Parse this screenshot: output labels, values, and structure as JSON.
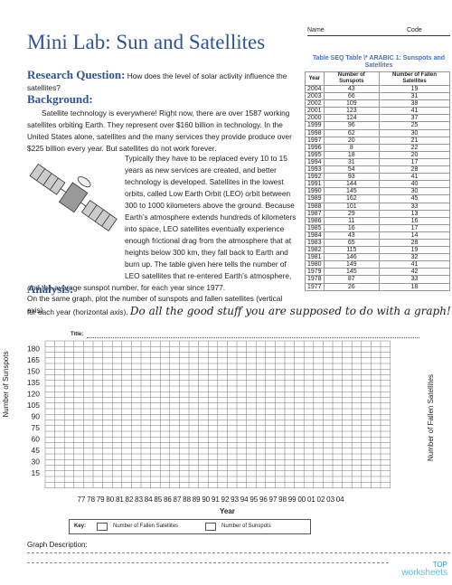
{
  "header": {
    "name_label": "Name",
    "code_label": "Code",
    "title": "Mini Lab: Sun and Satellites"
  },
  "research": {
    "heading": "Research Question:",
    "question": "How does the level of solar activity influence the satellites?"
  },
  "background": {
    "heading": "Background:",
    "paragraphs": [
      "Satellite technology is everywhere! Right now, there are over 1587 working satellites orbiting Earth. They represent over $160 billion in technology. In the United States alone, satellites and the many services they provide produce over $225 billion every year. But satellites do not work forever.",
      "Typically they have to be replaced every 10 to 15 years as new services are created, and better technology is developed. Satellites in the lowest orbits, called Low Earth Orbit (LEO) orbit between 300 to 1000 kilometers above the ground. Because Earth’s atmosphere extends hundreds of kilometers into space, LEO satellites eventually experience enough frictional drag from the atmosphere that at heights below 300 km, they fall back to Earth and burn up. The table given here tells the number of LEO satellites that re-entered Earth’s atmosphere, and the average sunspot number, for each year since 1977."
    ]
  },
  "table": {
    "caption": "Table  SEQ Table \\* ARABIC 1: Sunspots and Satellites",
    "headers": [
      "Year",
      "Number of Sunspots",
      "Number of Fallen Satellites"
    ],
    "rows": [
      [
        "2004",
        "43",
        "19"
      ],
      [
        "2003",
        "66",
        "31"
      ],
      [
        "2002",
        "109",
        "38"
      ],
      [
        "2001",
        "123",
        "41"
      ],
      [
        "2000",
        "124",
        "37"
      ],
      [
        "1999",
        "96",
        "25"
      ],
      [
        "1998",
        "62",
        "30"
      ],
      [
        "1997",
        "20",
        "21"
      ],
      [
        "1996",
        "8",
        "22"
      ],
      [
        "1995",
        "18",
        "20"
      ],
      [
        "1994",
        "31",
        "17"
      ],
      [
        "1993",
        "54",
        "28"
      ],
      [
        "1992",
        "93",
        "41"
      ],
      [
        "1991",
        "144",
        "40"
      ],
      [
        "1990",
        "145",
        "30"
      ],
      [
        "1989",
        "162",
        "45"
      ],
      [
        "1988",
        "101",
        "33"
      ],
      [
        "1987",
        "29",
        "13"
      ],
      [
        "1986",
        "11",
        "16"
      ],
      [
        "1985",
        "16",
        "17"
      ],
      [
        "1984",
        "43",
        "14"
      ],
      [
        "1983",
        "65",
        "28"
      ],
      [
        "1982",
        "115",
        "19"
      ],
      [
        "1981",
        "146",
        "32"
      ],
      [
        "1980",
        "149",
        "41"
      ],
      [
        "1979",
        "145",
        "42"
      ],
      [
        "1978",
        "87",
        "33"
      ],
      [
        "1977",
        "26",
        "18"
      ]
    ]
  },
  "analysis": {
    "heading": "Analysis:",
    "text": "On the same graph, plot the number of sunspots and fallen satellites (vertical axis)",
    "text_2": "for each year (horizontal axis).",
    "handwriting": "Do all the good stuff you are supposed to do with a graph!"
  },
  "graph": {
    "title_label": "Title:",
    "y_axis_label": "Number of Sunspots",
    "y2_axis_label": "Number of Fallen Satellites",
    "x_axis_label": "Year",
    "y_labels": [
      "180",
      "165",
      "150",
      "135",
      "120",
      "105",
      "90",
      "75",
      "60",
      "45",
      "30",
      "15"
    ],
    "x_labels": [
      "77",
      "78",
      "79",
      "80",
      "81",
      "82",
      "83",
      "84",
      "85",
      "86",
      "87",
      "88",
      "89",
      "90",
      "91",
      "92",
      "93",
      "94",
      "95",
      "96",
      "97",
      "98",
      "99",
      "00",
      "01",
      "02",
      "03",
      "04"
    ],
    "key": {
      "label": "Key:",
      "items": [
        "Number of Fallen Satellites",
        "Number of Sunspots"
      ]
    },
    "description_label": "Graph Description:"
  },
  "footer": {
    "brand_top": "TOP",
    "brand_bottom": "worksheets"
  }
}
